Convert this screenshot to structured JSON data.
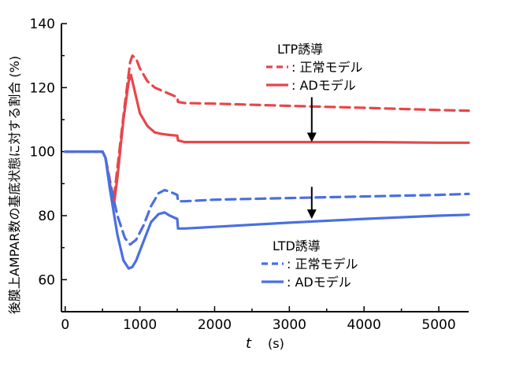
{
  "chart_data": {
    "type": "line",
    "title": "",
    "xlabel": "t",
    "xunit": "(s)",
    "ylabel": "後膜上AMPAR数の基底状態に対する割合 (%)",
    "xlim": [
      -50,
      5400
    ],
    "ylim": [
      50,
      140
    ],
    "xticks": [
      0,
      1000,
      2000,
      3000,
      4000,
      5000
    ],
    "yticks": [
      60,
      80,
      100,
      120,
      140
    ],
    "legend_groups": [
      {
        "title": "LTP誘導",
        "entries": [
          {
            "label": ": 正常モデル",
            "series": "ltp_normal"
          },
          {
            "label": ": ADモデル",
            "series": "ltp_ad"
          }
        ]
      },
      {
        "title": "LTD誘導",
        "entries": [
          {
            "label": ": 正常モデル",
            "series": "ltd_normal"
          },
          {
            "label": ": ADモデル",
            "series": "ltd_ad"
          }
        ]
      }
    ],
    "series": [
      {
        "id": "ltp_normal",
        "color": "#e8464a",
        "dash": true,
        "x": [
          0,
          500,
          540,
          650,
          700,
          800,
          870,
          900,
          950,
          1000,
          1100,
          1200,
          1300,
          1400,
          1500,
          1510,
          1600,
          2000,
          3000,
          4000,
          5000,
          5400
        ],
        "y": [
          100,
          100,
          98,
          85,
          95,
          115,
          128,
          130,
          129,
          126,
          122,
          120,
          119,
          118,
          117,
          115.5,
          115.2,
          115,
          114.3,
          113.7,
          113,
          112.8
        ]
      },
      {
        "id": "ltp_ad",
        "color": "#e8464a",
        "dash": false,
        "x": [
          0,
          500,
          540,
          650,
          700,
          780,
          850,
          880,
          920,
          1000,
          1100,
          1200,
          1300,
          1400,
          1500,
          1510,
          1600,
          2000,
          3000,
          4000,
          5000,
          5400
        ],
        "y": [
          100,
          100,
          98,
          83,
          92,
          110,
          122,
          124,
          120,
          112,
          108,
          106,
          105.5,
          105.2,
          105,
          103.5,
          103,
          103,
          103,
          103,
          102.8,
          102.8
        ]
      },
      {
        "id": "ltd_normal",
        "color": "#4a6fe0",
        "dash": true,
        "x": [
          0,
          500,
          540,
          600,
          700,
          800,
          870,
          950,
          1050,
          1150,
          1250,
          1330,
          1400,
          1500,
          1510,
          1600,
          2000,
          3000,
          4000,
          5000,
          5400
        ],
        "y": [
          100,
          100,
          98,
          90,
          80,
          73,
          71,
          72.5,
          77,
          83,
          87,
          88,
          87.5,
          86.5,
          84.5,
          84.5,
          85,
          85.5,
          86,
          86.5,
          86.8
        ]
      },
      {
        "id": "ltd_ad",
        "color": "#4a6fe0",
        "dash": false,
        "x": [
          0,
          500,
          540,
          600,
          700,
          780,
          850,
          900,
          950,
          1050,
          1150,
          1250,
          1330,
          1400,
          1500,
          1510,
          1600,
          2000,
          3000,
          4000,
          5000,
          5400
        ],
        "y": [
          100,
          100,
          98,
          88,
          74,
          66,
          63.5,
          64,
          66,
          72,
          78,
          80.5,
          81,
          80,
          79,
          76,
          76,
          76.5,
          77.8,
          79,
          80,
          80.3
        ]
      }
    ],
    "annotations": [
      {
        "type": "arrow-down",
        "x": 3300,
        "y_from": 117,
        "y_to": 103
      },
      {
        "type": "arrow-down",
        "x": 3300,
        "y_from": 89,
        "y_to": 79
      }
    ]
  }
}
